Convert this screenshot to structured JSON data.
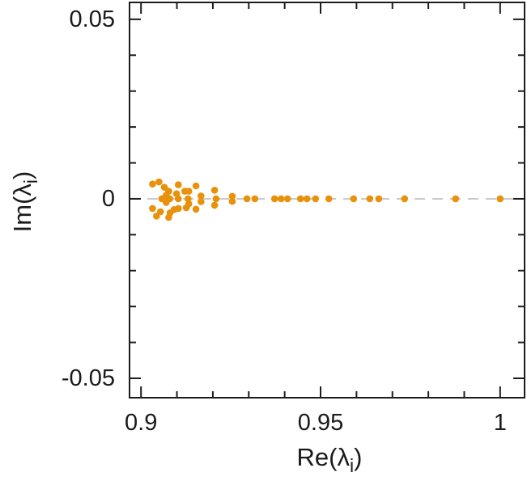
{
  "figure": {
    "background_color": "#ffffff",
    "frame_color": "#1c1c1c",
    "text_color": "#1a1a1a"
  },
  "chart_data": {
    "type": "scatter",
    "title": "",
    "xlabel": {
      "prefix": "Re(",
      "symbol": "λ",
      "sub": "i",
      "suffix": ")"
    },
    "ylabel": {
      "prefix": "Im(",
      "symbol": "λ",
      "sub": "i",
      "suffix": ")"
    },
    "xlim": [
      0.8968,
      1.0068
    ],
    "ylim": [
      -0.0554,
      0.0547
    ],
    "grid": false,
    "legend": null,
    "x_major_ticks": [
      {
        "value": 0.9,
        "label": "0.9"
      },
      {
        "value": 0.95,
        "label": "0.95"
      },
      {
        "value": 1.0,
        "label": "1"
      }
    ],
    "x_minor_tick_step": 0.01,
    "y_major_ticks": [
      {
        "value": -0.05,
        "label": "-0.05"
      },
      {
        "value": 0.0,
        "label": "0"
      },
      {
        "value": 0.05,
        "label": "0.05"
      }
    ],
    "y_minor_tick_step": 0.01,
    "zero_line": {
      "y": 0,
      "style": "dashed",
      "color": "#cacaca",
      "dash": [
        13,
        9
      ],
      "width": 2
    },
    "marker": {
      "shape": "circle",
      "color": "#e8910b",
      "radius_px": 4.3
    },
    "series_name": "eigenvalues",
    "points": [
      [
        0.9032,
        0.0041
      ],
      [
        0.905,
        0.0047
      ],
      [
        0.9065,
        0.0032
      ],
      [
        0.9077,
        0.0021
      ],
      [
        0.9099,
        0.0014
      ],
      [
        0.9104,
        0.0039
      ],
      [
        0.9122,
        0.0021
      ],
      [
        0.9133,
        0.0021
      ],
      [
        0.9153,
        0.0036
      ],
      [
        0.9205,
        0.0024
      ],
      [
        0.9032,
        -0.0027
      ],
      [
        0.9043,
        -0.0048
      ],
      [
        0.9054,
        -0.0036
      ],
      [
        0.9077,
        -0.0052
      ],
      [
        0.9081,
        -0.0039
      ],
      [
        0.9092,
        -0.003
      ],
      [
        0.9104,
        -0.0027
      ],
      [
        0.9126,
        -0.0025
      ],
      [
        0.9133,
        -0.0014
      ],
      [
        0.9153,
        -0.0029
      ],
      [
        0.9205,
        -0.0018
      ],
      [
        0.907,
        0.001
      ],
      [
        0.907,
        -0.001
      ],
      [
        0.9167,
        0.0008
      ],
      [
        0.9167,
        -0.0008
      ],
      [
        0.9254,
        0.0007
      ],
      [
        0.9254,
        -0.0007
      ],
      [
        0.9058,
        0
      ],
      [
        0.9062,
        0
      ],
      [
        0.9074,
        0
      ],
      [
        0.908,
        0
      ],
      [
        0.9104,
        0
      ],
      [
        0.9131,
        0
      ],
      [
        0.9209,
        0
      ],
      [
        0.9295,
        0
      ],
      [
        0.9317,
        0
      ],
      [
        0.9372,
        0
      ],
      [
        0.939,
        0
      ],
      [
        0.9408,
        0
      ],
      [
        0.9444,
        0
      ],
      [
        0.9462,
        0
      ],
      [
        0.9486,
        0
      ],
      [
        0.9523,
        0
      ],
      [
        0.9592,
        0
      ],
      [
        0.9637,
        0
      ],
      [
        0.9662,
        0
      ],
      [
        0.9734,
        0
      ],
      [
        0.9876,
        0
      ],
      [
        1.0,
        0
      ]
    ]
  }
}
